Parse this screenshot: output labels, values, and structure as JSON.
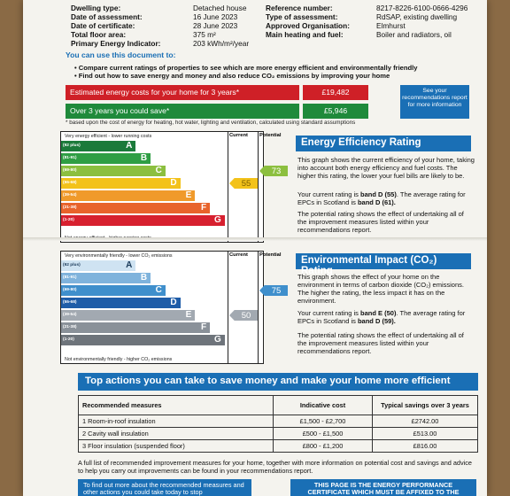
{
  "header_left": [
    {
      "k": "Dwelling type:",
      "v": "Detached house"
    },
    {
      "k": "Date of assessment:",
      "v": "16 June 2023"
    },
    {
      "k": "Date of certificate:",
      "v": "28 June 2023"
    },
    {
      "k": "Total floor area:",
      "v": "375 m²"
    },
    {
      "k": "Primary Energy Indicator:",
      "v": "203 kWh/m²/year"
    }
  ],
  "header_right": [
    {
      "k": "Reference number:",
      "v": "8217-8226-6100-0666-4296"
    },
    {
      "k": "Type of assessment:",
      "v": "RdSAP, existing dwelling"
    },
    {
      "k": "Approved Organisation:",
      "v": "Elmhurst"
    },
    {
      "k": "Main heating and fuel:",
      "v": "Boiler and radiators, oil"
    }
  ],
  "intro": {
    "title": "You can use this document to:",
    "bullets": [
      "• Compare current ratings of properties to see which are more energy efficient and environmentally friendly",
      "• Find out how to save energy and money and also reduce CO₂ emissions by improving your home"
    ]
  },
  "costs": {
    "estimated_label": "Estimated energy costs for your home for 3 years*",
    "estimated_value": "£19,482",
    "save_label": "Over 3 years you could save*",
    "save_value": "£5,946",
    "see_box": "See your recommendations report for more information",
    "footnote": "* based upon the cost of energy for heating, hot water, lighting and ventilation, calculated using standard assumptions",
    "colors": {
      "red": "#cf2027",
      "green": "#1f8a3b",
      "blue": "#1a6fb5"
    }
  },
  "eer": {
    "top_label": "Very energy efficient - lower running costs",
    "bottom_label": "Not energy efficient - higher running costs",
    "col_current": "Current",
    "col_potential": "Potential",
    "bands": [
      {
        "range": "(92 plus)",
        "letter": "A",
        "color": "#1b7a3a",
        "width": 0.26
      },
      {
        "range": "(81-91)",
        "letter": "B",
        "color": "#2f9e44",
        "width": 0.35
      },
      {
        "range": "(69-80)",
        "letter": "C",
        "color": "#8cbf3f",
        "width": 0.44
      },
      {
        "range": "(55-68)",
        "letter": "D",
        "color": "#f3c21a",
        "width": 0.53
      },
      {
        "range": "(39-54)",
        "letter": "E",
        "color": "#f09a2b",
        "width": 0.62
      },
      {
        "range": "(21-38)",
        "letter": "F",
        "color": "#e8632b",
        "width": 0.71
      },
      {
        "range": "(1-20)",
        "letter": "G",
        "color": "#d7202f",
        "width": 0.8
      }
    ],
    "current": "55",
    "potential": "73",
    "title": "Energy Efficiency Rating",
    "p1": "This graph shows the current efficiency of your home, taking into account both energy efficiency and fuel costs. The higher this rating, the lower your fuel bills are likely to be.",
    "p2a": "Your current rating is ",
    "p2b": "band D (55)",
    "p2c": ". The average rating for EPCs in Scotland is ",
    "p2d": "band D (61).",
    "p3": "The potential rating shows the effect of undertaking all of the improvement measures listed within your recommendations report."
  },
  "eir": {
    "top_label": "Very environmentally friendly - lower CO₂ emissions",
    "bottom_label": "Not environmentally friendly - higher CO₂ emissions",
    "col_current": "Current",
    "col_potential": "Potential",
    "bands": [
      {
        "range": "(92 plus)",
        "letter": "A",
        "color": "#cfe3f2",
        "width": 0.26
      },
      {
        "range": "(81-91)",
        "letter": "B",
        "color": "#7fb3dc",
        "width": 0.35
      },
      {
        "range": "(69-80)",
        "letter": "C",
        "color": "#3f8fcc",
        "width": 0.44
      },
      {
        "range": "(55-68)",
        "letter": "D",
        "color": "#1f5da8",
        "width": 0.53
      },
      {
        "range": "(39-54)",
        "letter": "E",
        "color": "#a2a9b1",
        "width": 0.62
      },
      {
        "range": "(21-38)",
        "letter": "F",
        "color": "#8a9199",
        "width": 0.71
      },
      {
        "range": "(1-20)",
        "letter": "G",
        "color": "#6e747b",
        "width": 0.8
      }
    ],
    "current": "50",
    "potential": "75",
    "title": "Environmental Impact (CO₂) Rating",
    "p1": "This graph shows the effect of your home on the environment in terms of carbon dioxide (CO₂) emissions. The higher the rating, the less impact it has on the environment.",
    "p2a": "Your current rating is ",
    "p2b": "band E (50)",
    "p2c": ". The average rating for EPCs in Scotland is ",
    "p2d": "band D (59).",
    "p3": "The potential rating shows the effect of undertaking all of the improvement measures listed within your recommendations report."
  },
  "actions": {
    "title": "Top actions you can take to save money and make your home more efficient",
    "col1": "Recommended measures",
    "col2": "Indicative cost",
    "col3": "Typical savings over 3 years",
    "rows": [
      {
        "m": "1 Room-in-roof insulation",
        "c": "£1,500 - £2,700",
        "s": "£2742.00"
      },
      {
        "m": "2 Cavity wall insulation",
        "c": "£500 - £1,500",
        "s": "£513.00"
      },
      {
        "m": "3 Floor insulation (suspended floor)",
        "c": "£800 - £1,200",
        "s": "£816.00"
      }
    ],
    "full_list": "A full list of recommended improvement measures for your home, together with more information on potential cost and savings and advice to help you carry out improvements can be found in your recommendations report.",
    "bottom_left": "To find out more about the recommended measures and other actions you could take today to stop",
    "bottom_right": "THIS PAGE IS THE ENERGY PERFORMANCE CERTIFICATE WHICH MUST BE AFFIXED TO THE"
  }
}
